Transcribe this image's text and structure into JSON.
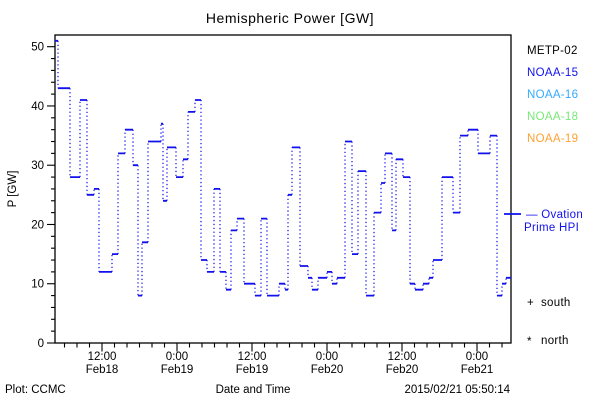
{
  "title": "Hemispheric Power [GW]",
  "x_axis": {
    "label": "Date and Time",
    "major_ticks": [
      {
        "time": "12:00",
        "date": "Feb18",
        "hour": 12
      },
      {
        "time": "0:00",
        "date": "Feb19",
        "hour": 24
      },
      {
        "time": "12:00",
        "date": "Feb19",
        "hour": 36
      },
      {
        "time": "0:00",
        "date": "Feb20",
        "hour": 48
      },
      {
        "time": "12:00",
        "date": "Feb20",
        "hour": 60
      },
      {
        "time": "0:00",
        "date": "Feb21",
        "hour": 72
      }
    ],
    "minor_step_hours": 2,
    "range_hours": [
      4.48,
      77.44
    ]
  },
  "y_axis": {
    "label": "P [GW]",
    "major_ticks": [
      0,
      10,
      20,
      30,
      40,
      50
    ],
    "minor_step": 2,
    "range": [
      0,
      52
    ]
  },
  "legend": {
    "satellites": [
      {
        "label": "METP-02",
        "color": "#000000"
      },
      {
        "label": "NOAA-15",
        "color": "#1111EE"
      },
      {
        "label": "NOAA-16",
        "color": "#33AAFF"
      },
      {
        "label": "NOAA-18",
        "color": "#77E877"
      },
      {
        "label": "NOAA-19",
        "color": "#FFA033"
      }
    ],
    "series_label_line1": "— Ovation",
    "series_label_line2": "Prime HPI",
    "series_color": "#1111EE",
    "markers": [
      {
        "symbol": "+",
        "label": "south"
      },
      {
        "symbol": "*",
        "label": "north"
      }
    ]
  },
  "footer": {
    "left": "Plot: CCMC",
    "right": "2015/02/21 05:50:14"
  },
  "chart_data": {
    "type": "step-line",
    "series_name": "Ovation Prime HPI",
    "unit": "GW",
    "title": "Hemispheric Power [GW]",
    "xlabel": "Date and Time",
    "ylabel": "P [GW]",
    "ylim": [
      0,
      52
    ],
    "x_hours_since_feb18_00": [
      4.48,
      4.96,
      6.88,
      8.48,
      9.6,
      10.72,
      11.52,
      13.6,
      14.56,
      15.68,
      16.96,
      17.76,
      18.4,
      19.36,
      21.44,
      21.76,
      22.4,
      23.84,
      24.96,
      25.76,
      26.88,
      27.84,
      28.8,
      29.92,
      30.88,
      31.84,
      32.64,
      33.6,
      34.72,
      36.48,
      37.44,
      38.4,
      40.32,
      41.28,
      41.76,
      42.4,
      43.68,
      44.96,
      45.6,
      46.56,
      48.0,
      48.8,
      49.6,
      50.88,
      52.0,
      52.96,
      54.24,
      55.52,
      56.64,
      57.28,
      58.4,
      59.04,
      60.16,
      61.28,
      62.08,
      63.36,
      64.32,
      64.96,
      66.4,
      68.16,
      69.28,
      70.56,
      72.16,
      74.08,
      75.2,
      76.0,
      76.64
    ],
    "values_gw": [
      51,
      43,
      28,
      41,
      25,
      26,
      12,
      15,
      32,
      36,
      30,
      8,
      17,
      34,
      37,
      24,
      33,
      28,
      31,
      39,
      41,
      14,
      12,
      26,
      12,
      9,
      19,
      21,
      10,
      8,
      21,
      8,
      10,
      9,
      25,
      33,
      13,
      11,
      9,
      11,
      12,
      10,
      11,
      34,
      15,
      29,
      8,
      22,
      27,
      32,
      19,
      31,
      28,
      10,
      9,
      10,
      11,
      14,
      28,
      22,
      35,
      36,
      32,
      35,
      8,
      10,
      11
    ],
    "end_hour": 77.44,
    "line_style": "solid horizontal steps with dotted vertical connectors"
  }
}
